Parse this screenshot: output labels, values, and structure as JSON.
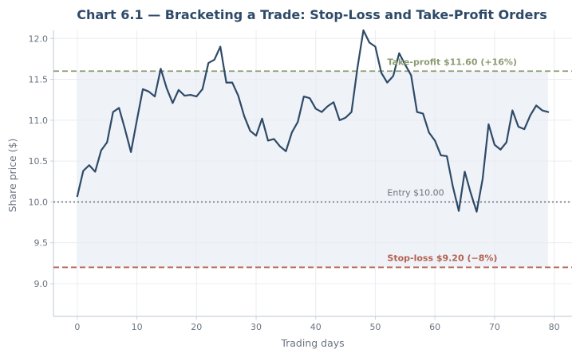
{
  "chart_data": {
    "type": "line",
    "title": "Chart 6.1 — Bracketing a Trade: Stop-Loss and Take-Profit Orders",
    "xlabel": "Trading days",
    "ylabel": "Share price ($)",
    "xlim": [
      -4,
      83
    ],
    "ylim": [
      8.6,
      12.1
    ],
    "x_ticks": [
      0,
      10,
      20,
      30,
      40,
      50,
      60,
      70,
      80
    ],
    "y_ticks": [
      9.0,
      9.5,
      10.0,
      10.5,
      11.0,
      11.5,
      12.0
    ],
    "grid": true,
    "series": [
      {
        "color": "#2e4a68",
        "x": [
          0,
          1,
          2,
          3,
          4,
          5,
          6,
          7,
          8,
          9,
          10,
          11,
          12,
          13,
          14,
          15,
          16,
          17,
          18,
          19,
          20,
          21,
          22,
          23,
          24,
          25,
          26,
          27,
          28,
          29,
          30,
          31,
          32,
          33,
          34,
          35,
          36,
          37,
          38,
          39,
          40,
          41,
          42,
          43,
          44,
          45,
          46,
          47,
          48,
          49,
          50,
          51,
          52,
          53,
          54,
          55,
          56,
          57,
          58,
          59,
          60,
          61,
          62,
          63,
          64,
          65,
          66,
          67,
          68,
          69,
          70,
          71,
          72,
          73,
          74,
          75,
          76,
          77,
          78,
          79
        ],
        "values": [
          10.07,
          10.38,
          10.45,
          10.37,
          10.63,
          10.73,
          11.1,
          11.15,
          10.89,
          10.61,
          11.0,
          11.38,
          11.35,
          11.29,
          11.63,
          11.39,
          11.21,
          11.37,
          11.3,
          11.31,
          11.29,
          11.38,
          11.7,
          11.74,
          11.9,
          11.46,
          11.46,
          11.3,
          11.05,
          10.87,
          10.81,
          11.02,
          10.75,
          10.77,
          10.68,
          10.62,
          10.85,
          10.98,
          11.29,
          11.27,
          11.14,
          11.1,
          11.17,
          11.22,
          11.0,
          11.03,
          11.1,
          11.64,
          12.1,
          11.95,
          11.9,
          11.58,
          11.46,
          11.54,
          11.82,
          11.68,
          11.55,
          11.1,
          11.08,
          10.85,
          10.75,
          10.57,
          10.56,
          10.19,
          9.89,
          10.37,
          10.11,
          9.88,
          10.28,
          10.95,
          10.7,
          10.64,
          10.73,
          11.12,
          10.92,
          10.89,
          11.06,
          11.18,
          11.12,
          11.1
        ]
      }
    ],
    "reference_lines": [
      {
        "value": 11.6,
        "label": "Take-profit $11.60 (+16%)",
        "color": "#8a9c72",
        "style": "dashed"
      },
      {
        "value": 10.0,
        "label": "Entry $10.00",
        "color": "#6b7480",
        "style": "dotted"
      },
      {
        "value": 9.2,
        "label": "Stop-loss $9.20 (−8%)",
        "color": "#b4604f",
        "style": "dashed"
      }
    ],
    "shaded_band": {
      "x": [
        0,
        79
      ],
      "y": [
        9.2,
        11.6
      ],
      "color": "#e8ecf3"
    },
    "annotation_x": 52
  }
}
